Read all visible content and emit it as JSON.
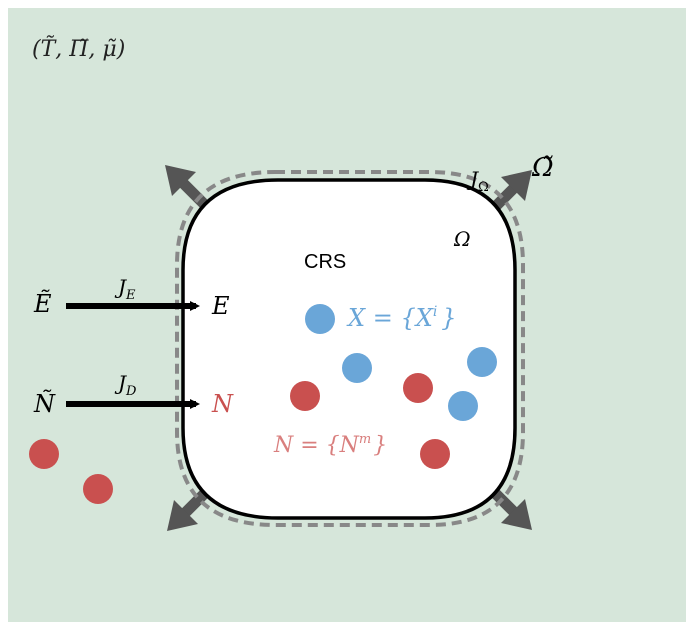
{
  "diagram": {
    "reservoir_label": "(T̃, Π̃, μ̃)",
    "system_label": "CRS",
    "volume_inner": "Ω",
    "volume_outer": "Ω̃",
    "volume_flux": "J",
    "volume_flux_sub": "Ω",
    "energy_reservoir": "Ẽ",
    "energy_flux": "J",
    "energy_flux_sub": "E",
    "energy_system": "E",
    "matter_reservoir": "Ñ",
    "matter_flux": "J",
    "matter_flux_sub": "D",
    "matter_system": "N",
    "x_species_label": "X = {X",
    "x_species_sup": "i",
    "x_species_close": "}",
    "n_species_label": "N = {N",
    "n_species_sup": "m",
    "n_species_close": "}"
  },
  "colors": {
    "background": "#d6e6da",
    "blue_particle": "#6aa6d8",
    "red_particle": "#c9504f",
    "blue_text": "#6aa6d8",
    "red_text": "#d97f7e",
    "arrow": "#555555",
    "membrane": "#000000",
    "dashed": "#888888"
  }
}
